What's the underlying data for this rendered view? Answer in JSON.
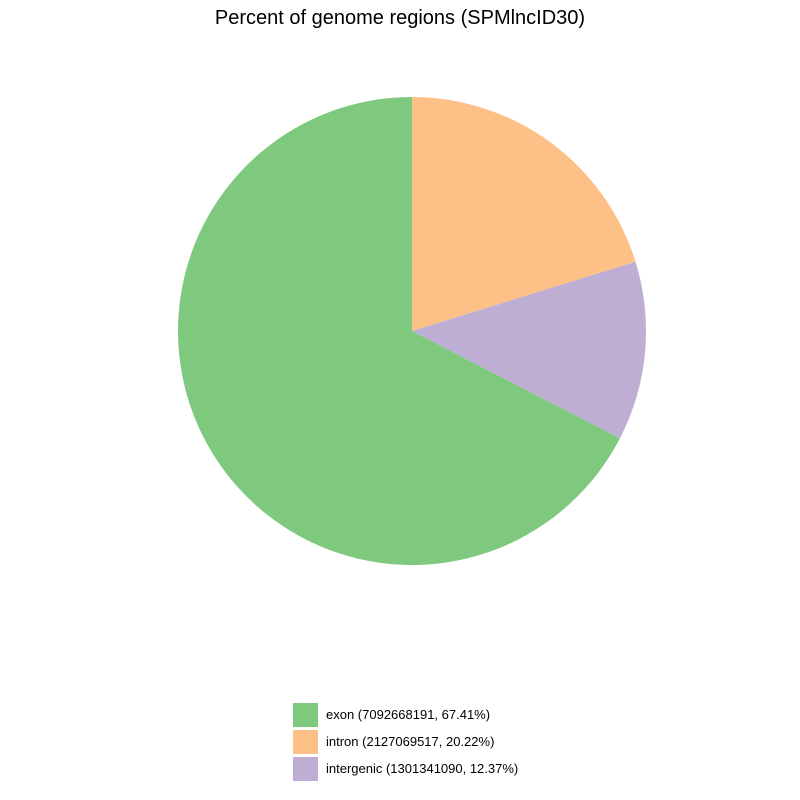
{
  "chart_data": {
    "type": "pie",
    "title": "Percent of genome regions (SPMlncID30)",
    "slices": [
      {
        "name": "exon",
        "value": 7092668191,
        "percent": 67.41,
        "color": "#7fc97f",
        "legend_label": "exon (7092668191, 67.41%)"
      },
      {
        "name": "intron",
        "value": 2127069517,
        "percent": 20.22,
        "color": "#fdc086",
        "legend_label": "intron (2127069517, 20.22%)"
      },
      {
        "name": "intergenic",
        "value": 1301341090,
        "percent": 12.37,
        "color": "#beaed4",
        "legend_label": "intergenic (1301341090, 12.37%)"
      }
    ],
    "direction": "clockwise",
    "legend_position": "bottom-center"
  }
}
